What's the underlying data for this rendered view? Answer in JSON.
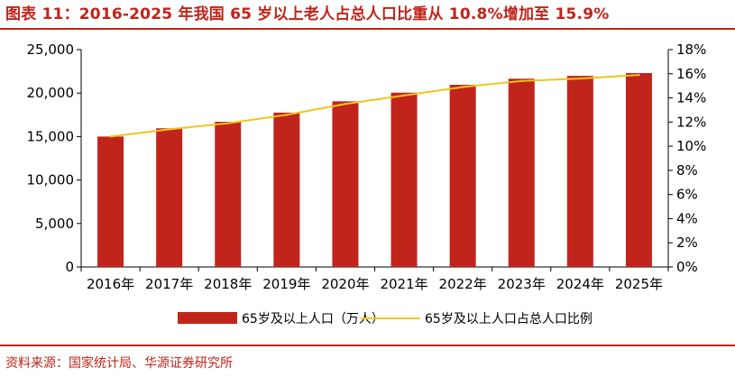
{
  "header": {
    "title": "图表 11：2016-2025 年我国 65 岁以上老人占总人口比重从 10.8%增加至 15.9%"
  },
  "footer": {
    "source": "资料来源：国家统计局、华源证券研究所"
  },
  "colors": {
    "bar": "#c0241a",
    "line": "#f2c418",
    "accent": "#c0241a"
  },
  "chart_data": {
    "type": "bar",
    "categories": [
      "2016年",
      "2017年",
      "2018年",
      "2019年",
      "2020年",
      "2021年",
      "2022年",
      "2023年",
      "2024年",
      "2025年"
    ],
    "series": [
      {
        "name": "65岁及以上人口（万人）",
        "type": "bar",
        "axis": "left",
        "values": [
          15000,
          15950,
          16700,
          17750,
          19050,
          20050,
          20950,
          21650,
          21980,
          22300
        ]
      },
      {
        "name": "65岁及以上人口占总人口比例",
        "type": "line",
        "axis": "right",
        "values": [
          10.8,
          11.4,
          11.9,
          12.6,
          13.5,
          14.2,
          14.9,
          15.4,
          15.6,
          15.9
        ]
      }
    ],
    "y_left": {
      "lim": [
        0,
        25000
      ],
      "ticks": [
        0,
        5000,
        10000,
        15000,
        20000,
        25000
      ],
      "tick_labels": [
        "0",
        "5,000",
        "10,000",
        "15,000",
        "20,000",
        "25,000"
      ]
    },
    "y_right": {
      "lim": [
        0,
        18
      ],
      "ticks": [
        0,
        2,
        4,
        6,
        8,
        10,
        12,
        14,
        16,
        18
      ],
      "tick_labels": [
        "0%",
        "2%",
        "4%",
        "6%",
        "8%",
        "10%",
        "12%",
        "14%",
        "16%",
        "18%"
      ]
    },
    "grid": false,
    "legend_position": "bottom"
  }
}
